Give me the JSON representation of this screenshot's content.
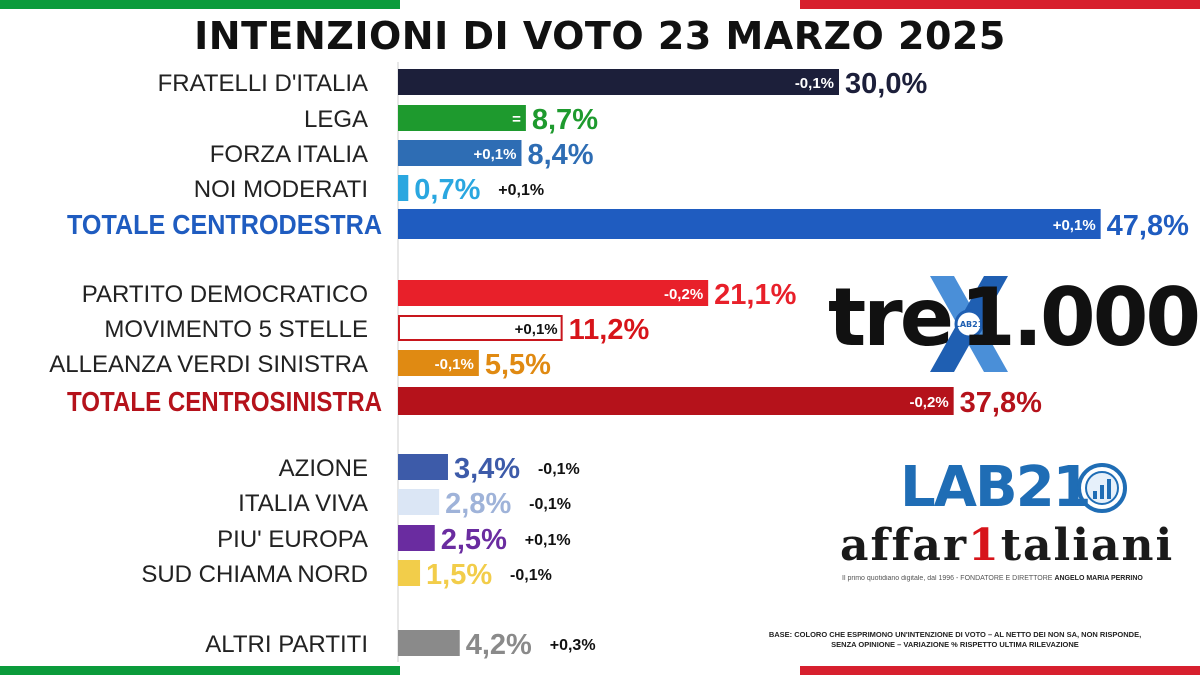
{
  "title": "INTENZIONI DI VOTO 23 MARZO 2025",
  "flag_colors": {
    "green": "#0b9b3b",
    "white": "#ffffff",
    "red": "#d7202e"
  },
  "chart_data": {
    "type": "bar",
    "orientation": "horizontal",
    "title": "INTENZIONI DI VOTO 23 MARZO 2025",
    "unit": "%",
    "categories": [
      "FRATELLI D'ITALIA",
      "LEGA",
      "FORZA ITALIA",
      "NOI MODERATI",
      "TOTALE CENTRODESTRA",
      "PARTITO DEMOCRATICO",
      "MOVIMENTO 5 STELLE",
      "ALLEANZA VERDI SINISTRA",
      "TOTALE CENTROSINISTRA",
      "AZIONE",
      "ITALIA VIVA",
      "PIU' EUROPA",
      "SUD CHIAMA NORD",
      "ALTRI PARTITI"
    ],
    "rows": [
      {
        "label": "FRATELLI D'ITALIA",
        "value": 30.0,
        "value_label": "30,0%",
        "change": "-0,1%",
        "change_pos": "inside",
        "color": "#1c1f3a",
        "label_color": "#222222",
        "value_color": "#1c1f3a",
        "outline": false,
        "total": false
      },
      {
        "label": "LEGA",
        "value": 8.7,
        "value_label": "8,7%",
        "change": "=",
        "change_pos": "inside",
        "color": "#1e9a2e",
        "label_color": "#222222",
        "value_color": "#1e9a2e",
        "outline": false,
        "total": false
      },
      {
        "label": "FORZA ITALIA",
        "value": 8.4,
        "value_label": "8,4%",
        "change": "+0,1%",
        "change_pos": "inside",
        "color": "#2e6db4",
        "label_color": "#222222",
        "value_color": "#2e6db4",
        "outline": false,
        "total": false
      },
      {
        "label": "NOI MODERATI",
        "value": 0.7,
        "value_label": "0,7%",
        "change": "+0,1%",
        "change_pos": "outside",
        "color": "#2aa7e0",
        "label_color": "#222222",
        "value_color": "#2aa7e0",
        "outline": false,
        "total": false
      },
      {
        "label": "TOTALE CENTRODESTRA",
        "value": 47.8,
        "value_label": "47,8%",
        "change": "+0,1%",
        "change_pos": "inside",
        "color": "#1f5cc0",
        "label_color": "#1f5cc0",
        "value_color": "#1f5cc0",
        "outline": false,
        "total": true
      },
      {
        "label": "PARTITO DEMOCRATICO",
        "value": 21.1,
        "value_label": "21,1%",
        "change": "-0,2%",
        "change_pos": "inside",
        "color": "#e8202a",
        "label_color": "#222222",
        "value_color": "#e8202a",
        "outline": false,
        "total": false
      },
      {
        "label": "MOVIMENTO 5 STELLE",
        "value": 11.2,
        "value_label": "11,2%",
        "change": "+0,1%",
        "change_pos": "inside",
        "color": "#c8161d",
        "label_color": "#222222",
        "value_color": "#d7141a",
        "outline": true,
        "total": false
      },
      {
        "label": "ALLEANZA VERDI SINISTRA",
        "value": 5.5,
        "value_label": "5,5%",
        "change": "-0,1%",
        "change_pos": "inside",
        "color": "#e08a12",
        "label_color": "#222222",
        "value_color": "#e08a12",
        "outline": false,
        "total": false
      },
      {
        "label": "TOTALE CENTROSINISTRA",
        "value": 37.8,
        "value_label": "37,8%",
        "change": "-0,2%",
        "change_pos": "inside",
        "color": "#b5121b",
        "label_color": "#b5121b",
        "value_color": "#b5121b",
        "outline": false,
        "total": true
      },
      {
        "label": "AZIONE",
        "value": 3.4,
        "value_label": "3,4%",
        "change": "-0,1%",
        "change_pos": "outside",
        "color": "#3d5ba9",
        "label_color": "#222222",
        "value_color": "#3d5ba9",
        "outline": false,
        "total": false
      },
      {
        "label": "ITALIA VIVA",
        "value": 2.8,
        "value_label": "2,8%",
        "change": "-0,1%",
        "change_pos": "outside",
        "color": "#dbe6f5",
        "label_color": "#222222",
        "value_color": "#9fb3d9",
        "outline": false,
        "total": false
      },
      {
        "label": "PIU' EUROPA",
        "value": 2.5,
        "value_label": "2,5%",
        "change": "+0,1%",
        "change_pos": "outside",
        "color": "#6a2ca0",
        "label_color": "#222222",
        "value_color": "#6a2ca0",
        "outline": false,
        "total": false
      },
      {
        "label": "SUD CHIAMA NORD",
        "value": 1.5,
        "value_label": "1,5%",
        "change": "-0,1%",
        "change_pos": "outside",
        "color": "#f2cd4a",
        "label_color": "#222222",
        "value_color": "#f2cd4a",
        "outline": false,
        "total": false
      },
      {
        "label": "ALTRI PARTITI",
        "value": 4.2,
        "value_label": "4,2%",
        "change": "+0,3%",
        "change_pos": "outside",
        "color": "#8a8a8a",
        "label_color": "#222222",
        "value_color": "#8a8a8a",
        "outline": false,
        "total": false
      }
    ],
    "grid": false,
    "legend": "none"
  },
  "branding": {
    "tre_text": "tre",
    "mille_text": "1.000",
    "x_badge_text": "LAB21",
    "lab_text": "LAB21",
    "affari_pre": "affar",
    "affari_one": "1",
    "affari_post": "taliani",
    "tagline_prefix": "Il primo quotidiano digitale, dal 1996 - FONDATORE E DIRETTORE",
    "tagline_name": "ANGELO MARIA PERRINO"
  },
  "footnote": "BASE: COLORO CHE ESPRIMONO UN'INTENZIONE DI VOTO – AL NETTO DEI NON SA, NON RISPONDE, SENZA OPINIONE – VARIAZIONE % RISPETTO ULTIMA RILEVAZIONE"
}
